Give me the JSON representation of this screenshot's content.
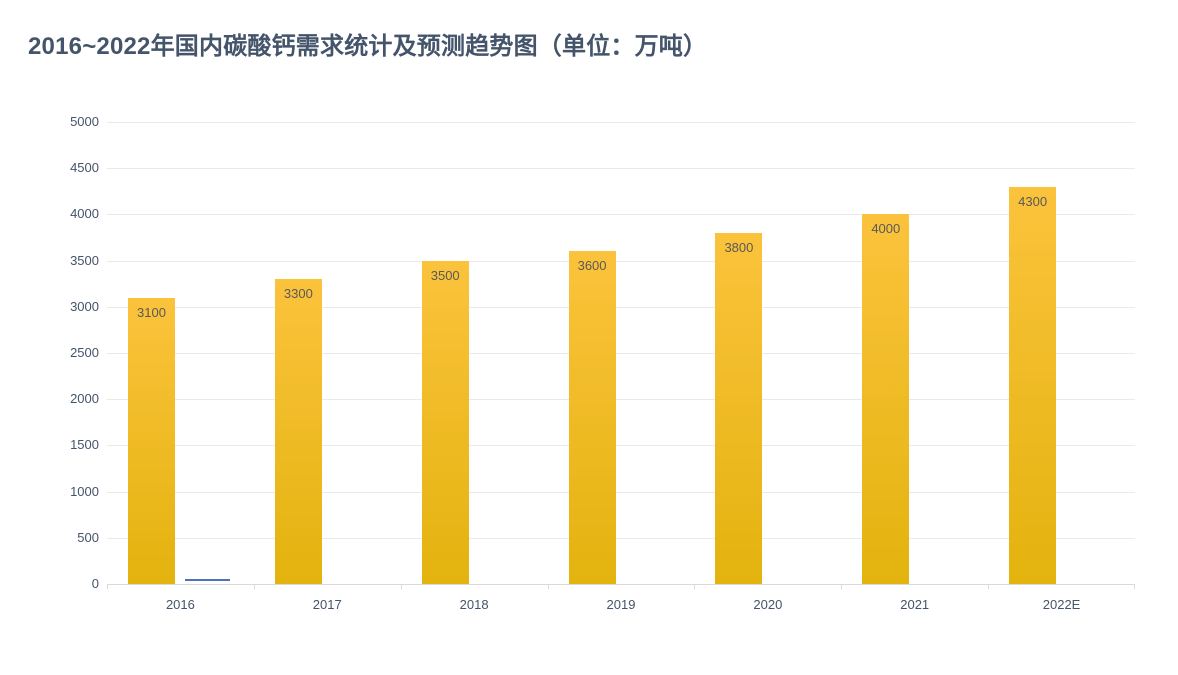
{
  "header": {
    "title": "2016~2022年国内碳酸钙需求统计及预测趋势图（单位：万吨）"
  },
  "chart_data": {
    "type": "bar",
    "title": "2016~2022年国内碳酸钙需求统计及预测趋势图（单位：万吨）",
    "unit": "万吨",
    "categories": [
      "2016",
      "2017",
      "2018",
      "2019",
      "2020",
      "2021",
      "2022E"
    ],
    "series": [
      {
        "id": "demand-columns",
        "type": "column",
        "values": [
          3100,
          3300,
          3500,
          3600,
          3800,
          4000,
          4300
        ],
        "data_labels": [
          "3100",
          "3300",
          "3500",
          "3600",
          "3800",
          "4000",
          "4300"
        ]
      },
      {
        "id": "secondary-near-zero",
        "type": "column",
        "values": [
          50,
          0,
          0,
          0,
          0,
          0,
          0
        ]
      }
    ],
    "xlabel": "",
    "ylabel": "",
    "ylim": [
      0,
      5000
    ],
    "ytick_step": 500,
    "ytick_labels": [
      "0",
      "500",
      "1000",
      "1500",
      "2000",
      "2500",
      "3000",
      "3500",
      "4000",
      "4500",
      "5000"
    ],
    "grid": true,
    "legend_position": "none"
  },
  "colors": {
    "background": "#FFFFFF",
    "title": "#44546A",
    "axis_label": "#44546A",
    "data_label": "#595959",
    "gridline": "#EAEAEA",
    "axis_line": "#D9D9D9",
    "bar_gradient_top": "#FBC33C",
    "bar_gradient_bottom": "#E3B30E",
    "secondary_series": "#4C74B9"
  }
}
